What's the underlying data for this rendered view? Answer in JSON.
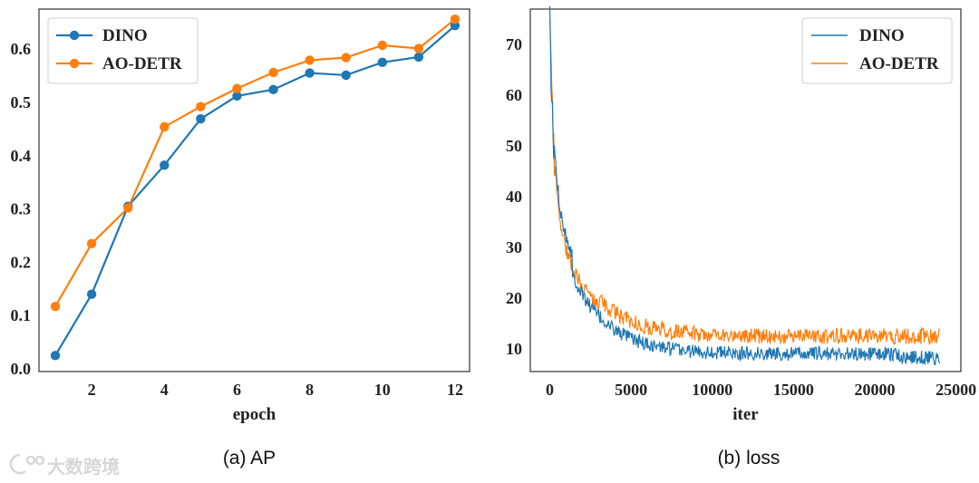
{
  "chart_data": [
    {
      "type": "line",
      "x": [
        1,
        2,
        3,
        4,
        5,
        6,
        7,
        8,
        9,
        10,
        11,
        12
      ],
      "series": [
        {
          "name": "DINO",
          "color": "#1f77b4",
          "values": [
            0.025,
            0.14,
            0.305,
            0.382,
            0.469,
            0.512,
            0.524,
            0.555,
            0.551,
            0.575,
            0.585,
            0.644
          ]
        },
        {
          "name": "AO-DETR",
          "color": "#ff7f0e",
          "values": [
            0.117,
            0.235,
            0.302,
            0.454,
            0.492,
            0.526,
            0.556,
            0.579,
            0.584,
            0.607,
            0.601,
            0.656
          ]
        }
      ],
      "xlabel": "epoch",
      "ylabel": "",
      "xlim": [
        0.55,
        12.4
      ],
      "ylim": [
        -0.005,
        0.675
      ],
      "xticks": [
        "2",
        "4",
        "6",
        "8",
        "10",
        "12"
      ],
      "yticks": [
        "0.0",
        "0.1",
        "0.2",
        "0.3",
        "0.4",
        "0.5",
        "0.6"
      ],
      "caption": "(a) AP",
      "legend": "top-left",
      "grid": false,
      "markers": true
    },
    {
      "type": "line",
      "x_range": [
        0,
        24000
      ],
      "series": [
        {
          "name": "DINO",
          "color": "#1f77b4",
          "start": 74,
          "end": 9,
          "noise": 1.4
        },
        {
          "name": "AO-DETR",
          "color": "#ff7f0e",
          "start": 74.5,
          "end": 11,
          "noise": 1.6
        }
      ],
      "xlabel": "iter",
      "ylabel": "",
      "xlim": [
        -1200,
        25300
      ],
      "ylim": [
        5.5,
        77
      ],
      "xticks": [
        "0",
        "5000",
        "10000",
        "15000",
        "20000",
        "25000"
      ],
      "yticks": [
        "10",
        "20",
        "30",
        "40",
        "50",
        "60",
        "70"
      ],
      "caption": "(b) loss",
      "legend": "top-right",
      "grid": false,
      "markers": false
    }
  ],
  "watermark": "大数跨境"
}
